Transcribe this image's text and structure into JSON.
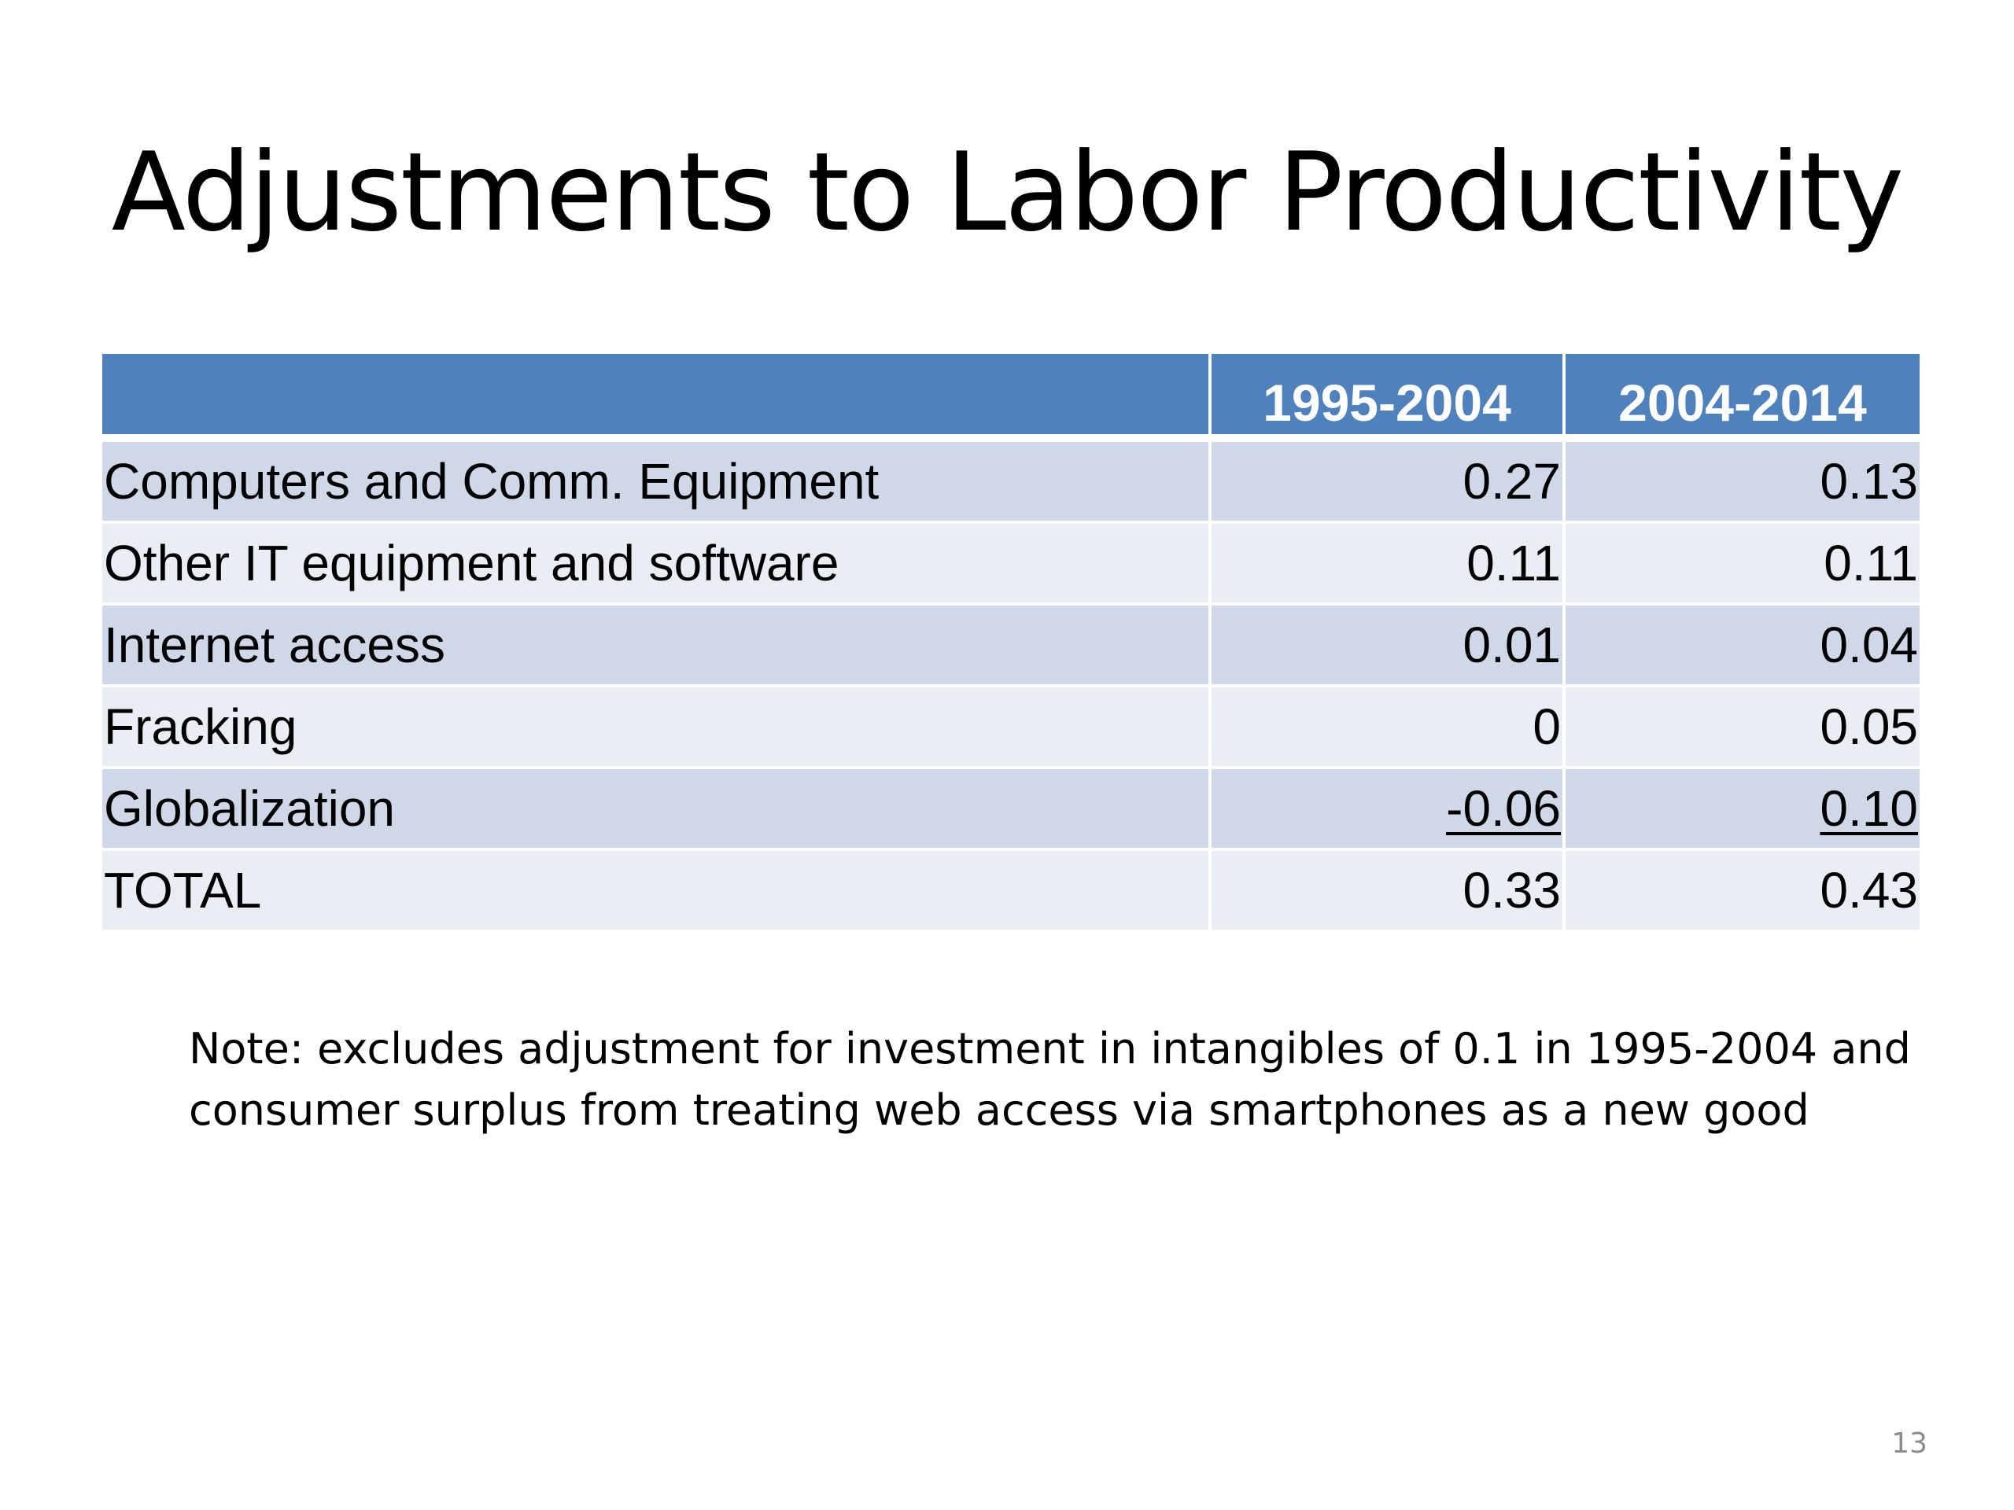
{
  "slide": {
    "title": "Adjustments to Labor Productivity",
    "note": "Note: excludes adjustment for investment in intangibles of 0.1 in 1995-2004 and consumer surplus from treating web access via smartphones as a new good",
    "page_number": "13"
  },
  "colors": {
    "header_bg": "#4f81bd",
    "row_dark": "#d0d8e8",
    "row_light": "#e9edf4",
    "header_text": "#ffffff"
  },
  "table": {
    "headers": [
      "",
      "1995-2004",
      "2004-2014"
    ],
    "rows": [
      {
        "label": "Computers and Comm. Equipment",
        "v1": "0.27",
        "v2": "0.13"
      },
      {
        "label": "Other IT equipment and software",
        "v1": "0.11",
        "v2": "0.11"
      },
      {
        "label": "Internet access",
        "v1": "0.01",
        "v2": "0.04"
      },
      {
        "label": "Fracking",
        "v1": "0",
        "v2": "0.05"
      },
      {
        "label": "Globalization",
        "v1": "-0.06",
        "v2": "0.10",
        "underlined": true
      },
      {
        "label": "TOTAL",
        "v1": "0.33",
        "v2": "0.43"
      }
    ]
  }
}
